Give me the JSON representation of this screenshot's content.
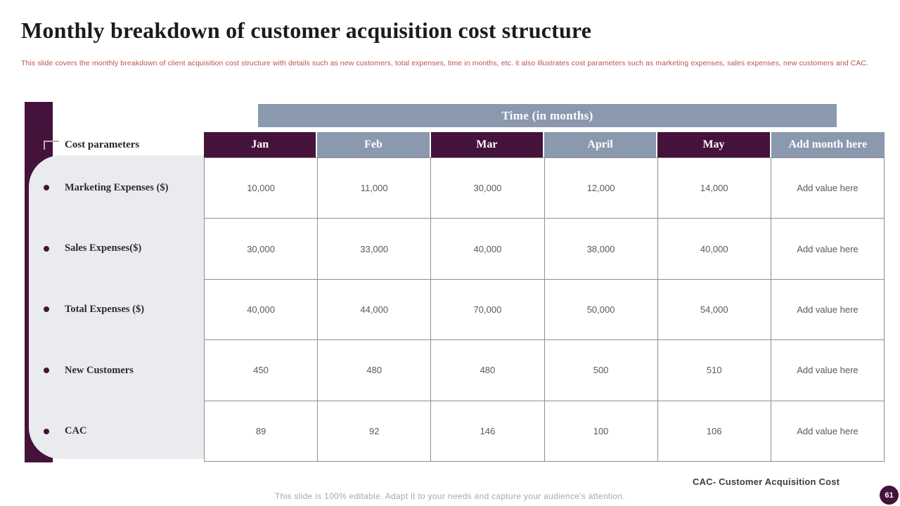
{
  "slide": {
    "title": "Monthly breakdown of customer acquisition cost structure",
    "subtitle": "This slide covers the monthly breakdown of client acquisition cost structure with details such as new customers, total expenses, time in months, etc. it also illustrates cost parameters such as marketing expenses, sales expenses, new customers and CAC.",
    "abbreviation_note": "CAC- Customer Acquisition Cost",
    "footer_note": "This slide is 100% editable. Adapt it to your needs and capture your audience's attention.",
    "page_number": "61"
  },
  "table": {
    "band_title": "Time (in months)",
    "row_header_label": "Cost parameters",
    "columns": [
      "Jan",
      "Feb",
      "Mar",
      "April",
      "May",
      "Add month here"
    ],
    "rows": [
      {
        "label": "Marketing Expenses ($)",
        "values": [
          "10,000",
          "11,000",
          "30,000",
          "12,000",
          "14,000",
          "Add value here"
        ]
      },
      {
        "label": "Sales Expenses($)",
        "values": [
          "30,000",
          "33,000",
          "40,000",
          "38,000",
          "40,000",
          "Add value here"
        ]
      },
      {
        "label": "Total Expenses ($)",
        "values": [
          "40,000",
          "44,000",
          "70,000",
          "50,000",
          "54,000",
          "Add value here"
        ]
      },
      {
        "label": "New Customers",
        "values": [
          "450",
          "480",
          "480",
          "500",
          "510",
          "Add value here"
        ]
      },
      {
        "label": "CAC",
        "values": [
          "89",
          "92",
          "146",
          "100",
          "106",
          "Add value here"
        ]
      }
    ]
  },
  "colors": {
    "primary_dark": "#45123b",
    "accent_blue": "#8a99ae",
    "panel_gray": "#e9ebee",
    "subtitle_red": "#c0504d",
    "value_gray": "#595959",
    "footer_gray": "#a8a8a8",
    "border_gray": "#8f8f8f"
  }
}
